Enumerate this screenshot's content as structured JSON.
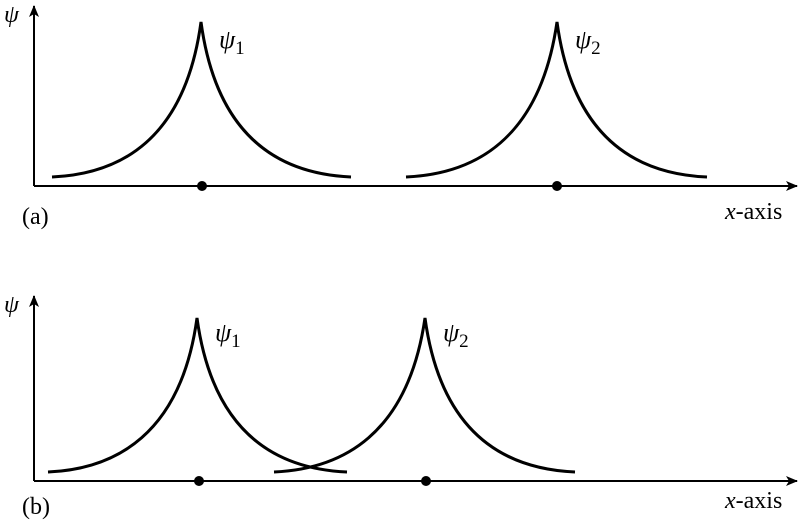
{
  "colors": {
    "ink": "#000000",
    "background": "#ffffff"
  },
  "panels": [
    {
      "id": "a",
      "panel_label": "(a)",
      "y_axis_label": "ψ",
      "x_axis_label": "-axis",
      "x_axis_var": "x",
      "wavefunctions": [
        {
          "label": "ψ",
          "subscript": "1"
        },
        {
          "label": "ψ",
          "subscript": "2"
        }
      ]
    },
    {
      "id": "b",
      "panel_label": "(b)",
      "y_axis_label": "ψ",
      "x_axis_label": "-axis",
      "x_axis_var": "x",
      "wavefunctions": [
        {
          "label": "ψ",
          "subscript": "1"
        },
        {
          "label": "ψ",
          "subscript": "2"
        }
      ]
    }
  ]
}
